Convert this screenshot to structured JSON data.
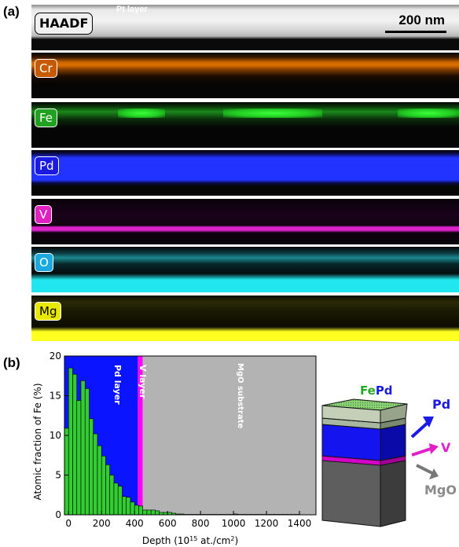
{
  "panel_a": {
    "label": "(a)",
    "pt_label": "Pt layer",
    "scale_bar": "200 nm",
    "maps": [
      {
        "tag": "HAADF",
        "tag_bg": "#f0f0f0",
        "tag_fg": "#000000"
      },
      {
        "tag": "Cr",
        "tag_bg": "#c65a00",
        "tag_fg": "#ffffff",
        "color": "#e07000"
      },
      {
        "tag": "Fe",
        "tag_bg": "#22a022",
        "tag_fg": "#ffffff",
        "color": "#22dd22"
      },
      {
        "tag": "Pd",
        "tag_bg": "#1a1ae0",
        "tag_fg": "#ffffff",
        "color": "#2233ff"
      },
      {
        "tag": "V",
        "tag_bg": "#e020c0",
        "tag_fg": "#ffffff",
        "color": "#dd22cc"
      },
      {
        "tag": "O",
        "tag_bg": "#1aaae0",
        "tag_fg": "#ffffff",
        "color": "#22e6ee"
      },
      {
        "tag": "Mg",
        "tag_bg": "#e8e800",
        "tag_fg": "#000000",
        "color": "#ffff20"
      }
    ]
  },
  "panel_b": {
    "label": "(b)",
    "schematic": {
      "fe_label": "Fe",
      "pd_label": "Pd",
      "arrow_pd": "Pd",
      "arrow_v": "V",
      "arrow_mgo": "MgO"
    }
  },
  "chart_data": {
    "type": "bar",
    "xlabel": "Depth (10",
    "xlabel_sup": "15",
    "xlabel_end": " at./cm",
    "xlabel_sup2": "2",
    "xlabel_close": ")",
    "ylabel": "Atomic fraction of Fe (%)",
    "xlim": [
      -25,
      1500
    ],
    "ylim": [
      0,
      20
    ],
    "xticks": [
      0,
      200,
      400,
      600,
      800,
      1000,
      1200,
      1400
    ],
    "yticks": [
      0,
      5,
      10,
      15,
      20
    ],
    "bin_width": 25,
    "bins_start": [
      -25,
      0,
      25,
      50,
      75,
      100,
      125,
      150,
      175,
      200,
      225,
      250,
      275,
      300,
      325,
      350,
      375,
      400,
      425,
      450,
      475,
      500,
      525,
      550,
      575,
      600,
      625,
      650,
      675,
      700,
      725,
      750,
      775,
      800,
      825,
      850,
      875,
      900,
      925,
      950,
      975,
      1000,
      1025,
      1050,
      1075,
      1100,
      1125,
      1150,
      1175,
      1200,
      1225,
      1250,
      1275,
      1300,
      1325,
      1350,
      1375
    ],
    "values": [
      10.9,
      18.5,
      17.7,
      14.4,
      16.9,
      15.9,
      12.1,
      10.2,
      8.7,
      7.4,
      6.3,
      5.0,
      4.0,
      3.6,
      2.3,
      2.2,
      1.6,
      1.2,
      1.1,
      0.6,
      0.6,
      0.6,
      0.5,
      0.3,
      0.3,
      0.3,
      0.2,
      0.1,
      0.1,
      0.05,
      0.05,
      0.05,
      0.05,
      0.05,
      0.05,
      0.05,
      0.05,
      0.05,
      0.05,
      0.05,
      0.05,
      0.1,
      0.05,
      0.05,
      0.05,
      0.05,
      0.05,
      0.05,
      0.05,
      0.05,
      0.05,
      0.05,
      0.05,
      0.05,
      0.05,
      0.05,
      0.05
    ],
    "regions": [
      {
        "label": "Pd layer",
        "from": -25,
        "to": 420,
        "color": "#0a14ff"
      },
      {
        "label": "V layer",
        "from": 420,
        "to": 450,
        "color": "#ff00ff"
      },
      {
        "label": "MgO substrate",
        "from": 450,
        "to": 1500,
        "color": "#b3b3b3"
      }
    ],
    "bar_color": "#33cc33",
    "grid": false
  }
}
